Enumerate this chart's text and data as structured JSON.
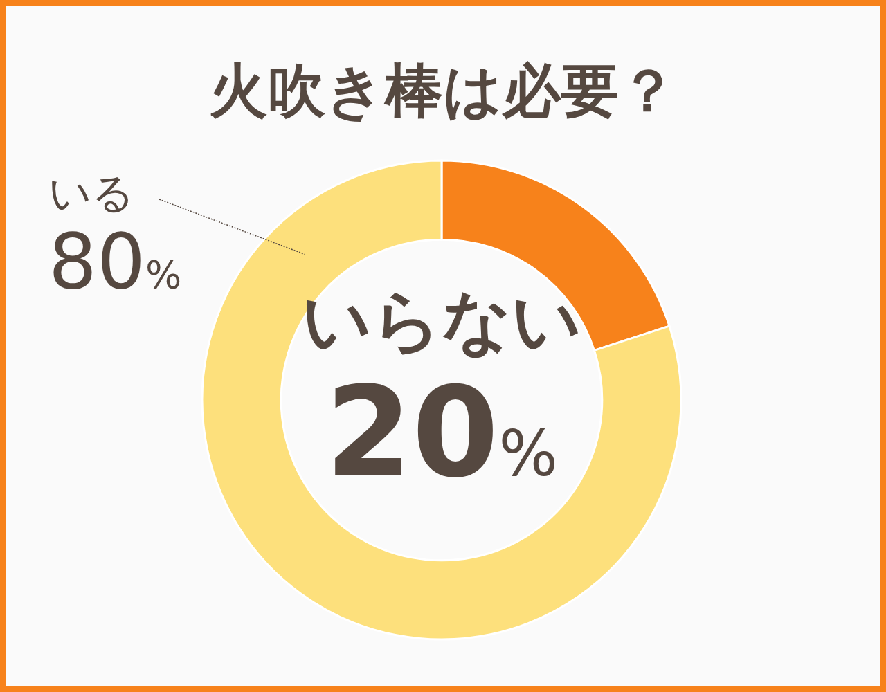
{
  "chart_data": {
    "type": "donut",
    "title": "火吹き棒は必要？",
    "categories": [
      "いらない",
      "いる"
    ],
    "values": [
      20,
      80
    ],
    "colors": [
      "#f7821b",
      "#fde07c"
    ],
    "value_labels": [
      "20%",
      "80%"
    ]
  }
}
